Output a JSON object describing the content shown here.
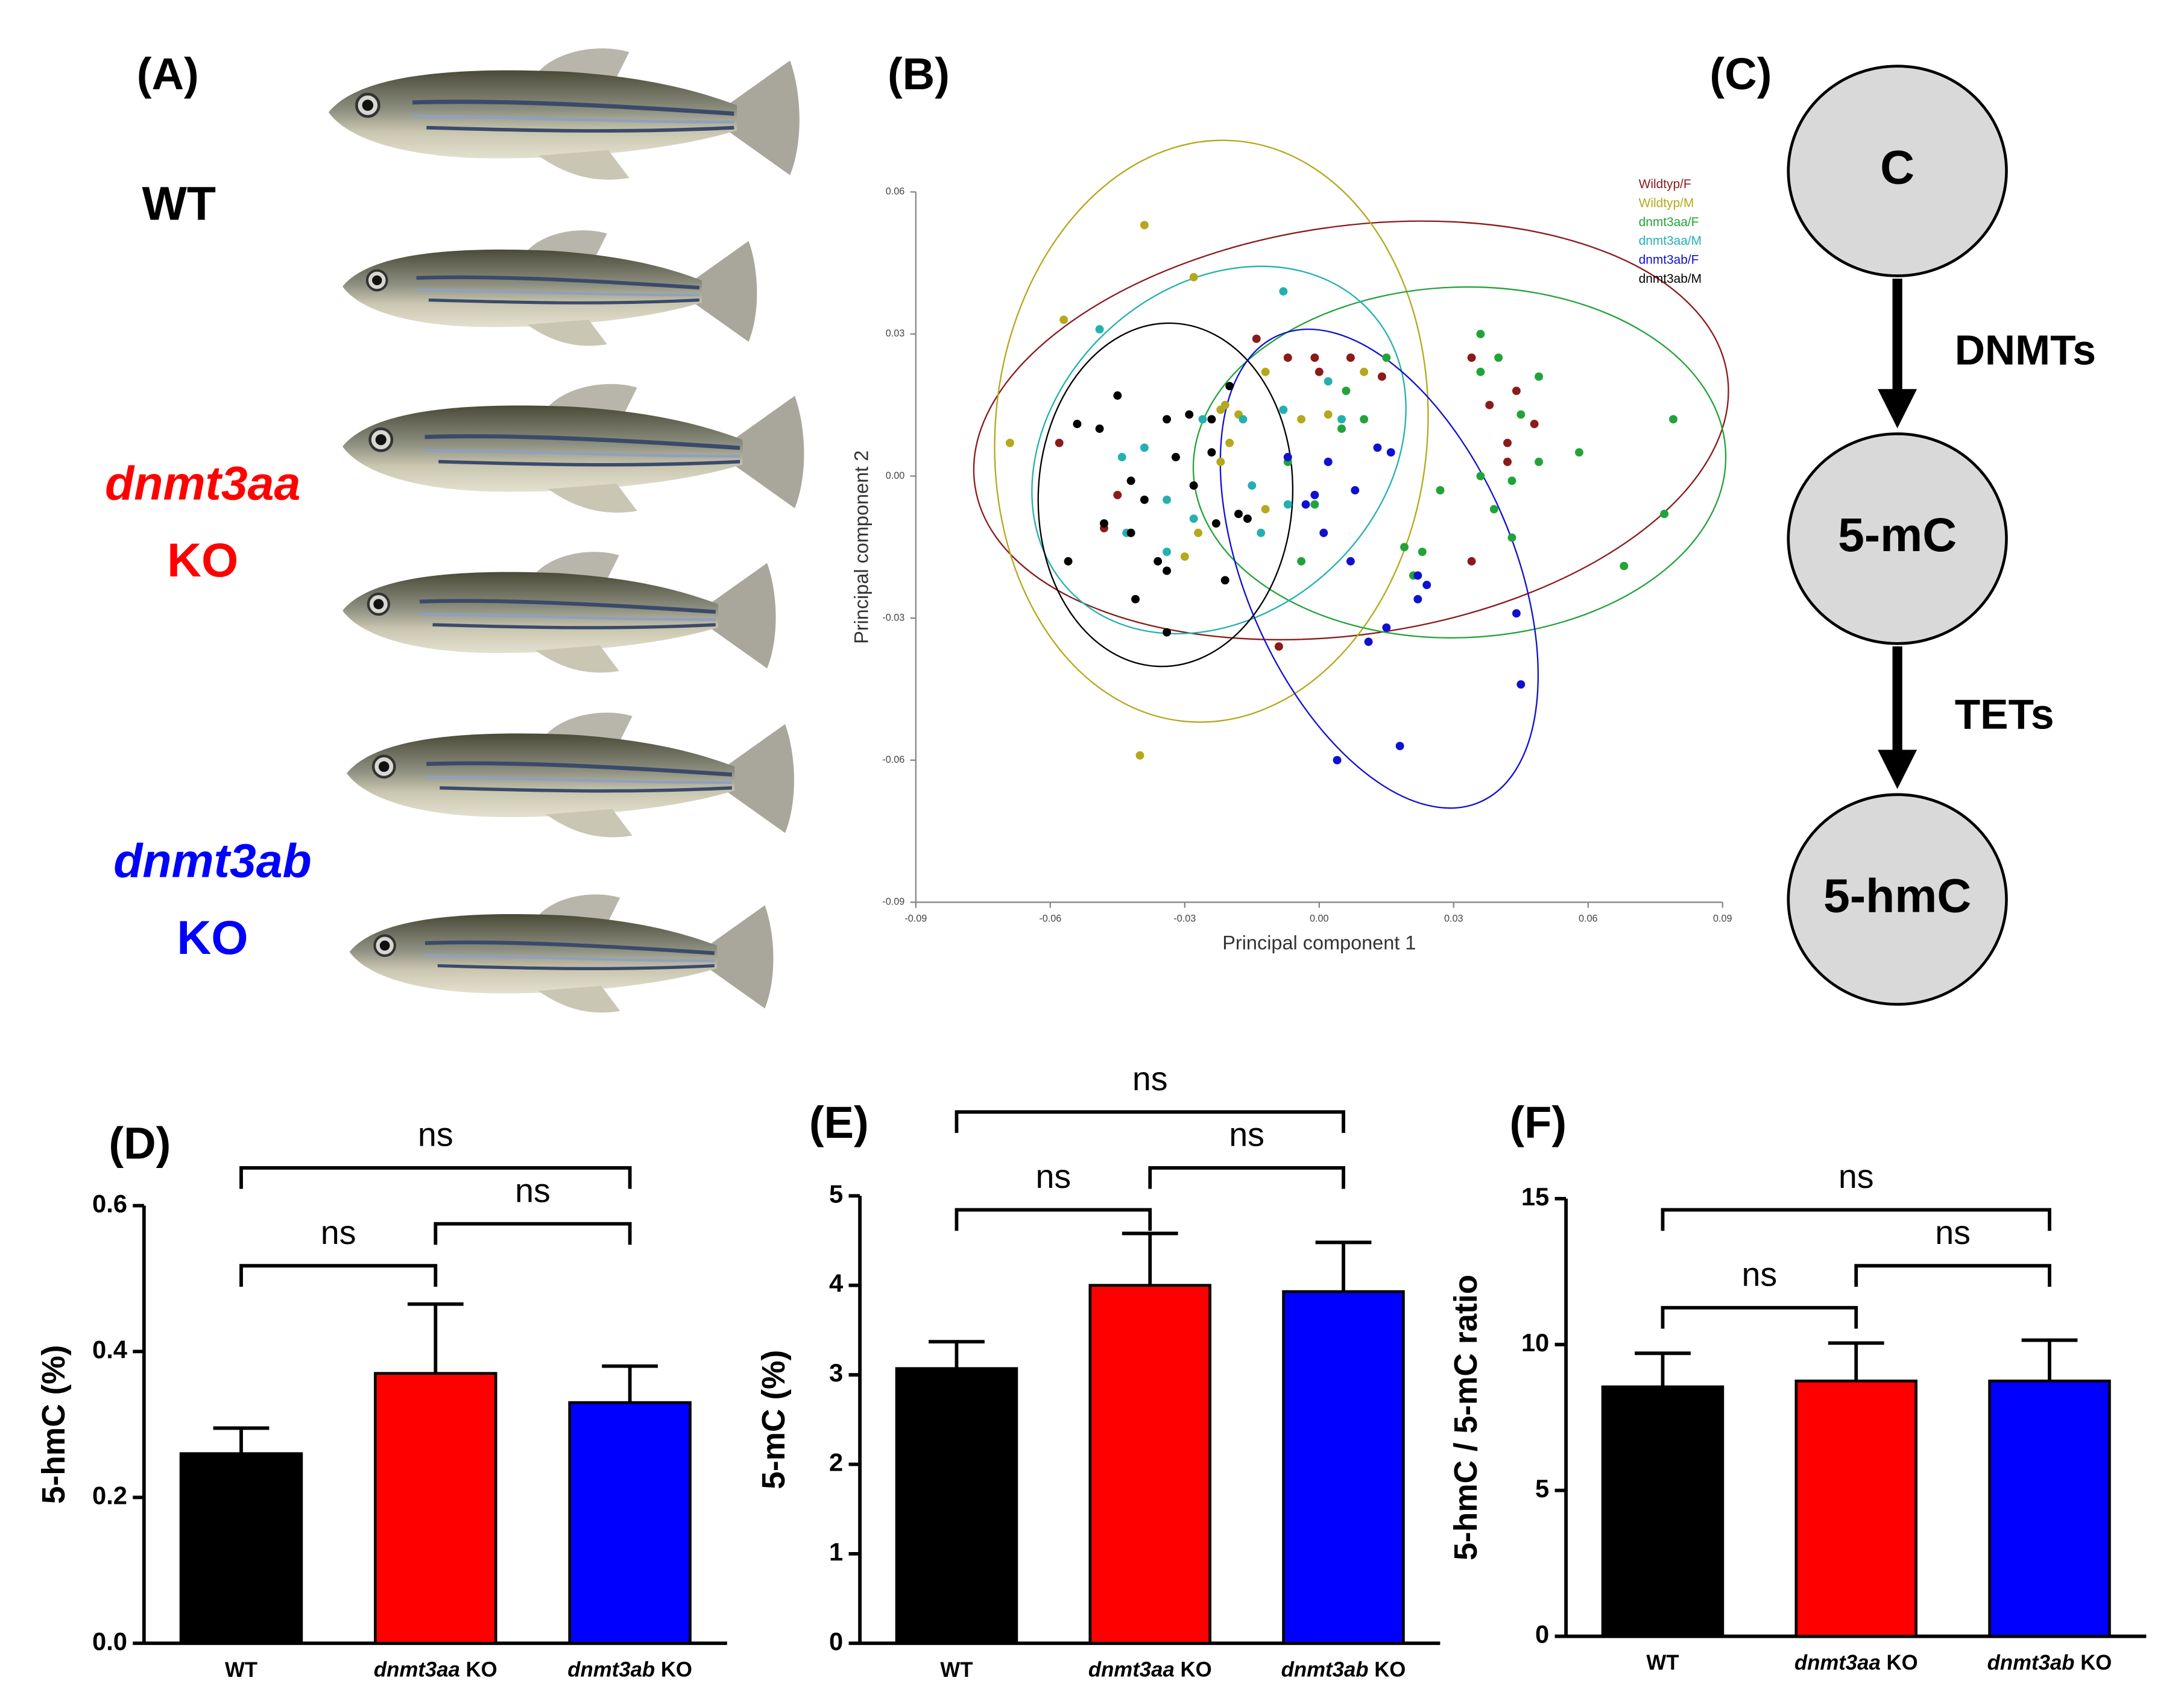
{
  "panel_a": {
    "label": "(A)",
    "groups": [
      {
        "lines": [
          "WT"
        ],
        "color": "#000000"
      },
      {
        "lines": [
          "dnmt3aa",
          "KO"
        ],
        "color": "#ff0000"
      },
      {
        "lines": [
          "dnmt3ab",
          "KO"
        ],
        "color": "#0000ff"
      }
    ]
  },
  "panel_c": {
    "label": "(C)",
    "nodes": [
      "C",
      "5-mC",
      "5-hmC"
    ],
    "edges": [
      "DNMTs",
      "TETs"
    ]
  },
  "chart_data": [
    {
      "type": "scatter",
      "label": "(B)",
      "x_label": "Principal component 1",
      "y_label": "Principal component 2",
      "xlim": [
        -0.09,
        0.09
      ],
      "xticks": [
        -0.09,
        -0.06,
        -0.03,
        {
          "value": 0,
          "label": "0.00"
        },
        0.03,
        0.06,
        0.09
      ],
      "ylim": [
        -0.09,
        0.06
      ],
      "yticks": [
        -0.09,
        -0.06,
        -0.03,
        {
          "value": 0,
          "label": "0.00"
        },
        0.03,
        0.06
      ],
      "legend": "upper right",
      "ellipses": true,
      "series": [
        {
          "name": "Wildtyp/F",
          "color": "#8b1a1a",
          "x": [
            -0.014,
            -0.007,
            -0.001,
            0.007,
            0.014,
            0.0,
            0.034,
            0.044,
            0.038,
            0.042,
            0.048,
            0.042,
            -0.048,
            -0.045,
            -0.058,
            -0.009,
            0.034
          ],
          "values": [
            0.029,
            0.025,
            0.025,
            0.025,
            0.021,
            0.022,
            0.025,
            0.018,
            0.015,
            0.007,
            0.011,
            0.003,
            -0.011,
            -0.004,
            0.007,
            -0.036,
            -0.018
          ]
        },
        {
          "name": "Wildtyp/M",
          "color": "#b5a81c",
          "x": [
            -0.039,
            -0.028,
            -0.069,
            -0.057,
            -0.04,
            -0.012,
            -0.022,
            -0.018,
            -0.004,
            -0.03,
            -0.02,
            -0.027,
            -0.022,
            -0.012,
            0.01,
            0.002,
            -0.021
          ],
          "values": [
            0.053,
            0.042,
            0.007,
            0.033,
            -0.059,
            0.022,
            0.014,
            0.013,
            0.012,
            -0.017,
            0.007,
            -0.012,
            0.003,
            -0.007,
            0.022,
            0.013,
            0.015
          ]
        },
        {
          "name": "dnmt3aa/F",
          "color": "#22a33a",
          "x": [
            0.015,
            0.036,
            0.04,
            0.049,
            0.036,
            0.045,
            0.049,
            0.058,
            0.036,
            0.027,
            0.039,
            0.043,
            0.079,
            0.077,
            0.068,
            0.019,
            0.023,
            0.021,
            -0.004,
            0.006,
            0.01,
            0.002,
            -0.001,
            -0.007,
            0.005,
            0.043
          ],
          "values": [
            0.025,
            0.03,
            0.025,
            0.021,
            0.022,
            0.013,
            0.003,
            0.005,
            0.0,
            -0.003,
            -0.007,
            -0.013,
            0.012,
            -0.008,
            -0.019,
            -0.015,
            -0.016,
            -0.021,
            -0.018,
            0.018,
            0.012,
            0.003,
            -0.006,
            0.003,
            0.01,
            -0.001
          ]
        },
        {
          "name": "dnmt3aa/M",
          "color": "#25b0b0",
          "x": [
            -0.049,
            -0.008,
            -0.044,
            -0.039,
            -0.034,
            -0.043,
            -0.017,
            -0.008,
            0.002,
            0.005,
            -0.015,
            -0.013,
            -0.034,
            -0.026,
            -0.028,
            -0.007
          ],
          "values": [
            0.031,
            0.039,
            0.004,
            0.006,
            -0.005,
            -0.012,
            0.012,
            0.014,
            0.02,
            0.012,
            -0.002,
            -0.012,
            -0.016,
            0.012,
            -0.009,
            -0.006
          ]
        },
        {
          "name": "dnmt3ab/F",
          "color": "#1010d0",
          "x": [
            0.013,
            0.016,
            0.002,
            0.008,
            -0.003,
            0.001,
            0.007,
            0.022,
            0.024,
            0.022,
            0.015,
            0.011,
            0.044,
            0.045,
            0.018,
            0.004,
            -0.007,
            -0.001
          ],
          "values": [
            0.006,
            0.005,
            0.003,
            -0.003,
            -0.006,
            -0.012,
            -0.018,
            -0.021,
            -0.023,
            -0.026,
            -0.032,
            -0.035,
            -0.029,
            -0.044,
            -0.057,
            -0.06,
            0.004,
            -0.004
          ]
        },
        {
          "name": "dnmt3ab/M",
          "color": "#000000",
          "x": [
            -0.054,
            -0.049,
            -0.045,
            -0.034,
            -0.029,
            -0.024,
            -0.02,
            -0.032,
            -0.024,
            -0.028,
            -0.039,
            -0.042,
            -0.036,
            -0.034,
            -0.041,
            -0.034,
            -0.056,
            -0.023,
            -0.018,
            -0.016,
            -0.021,
            -0.042,
            -0.048
          ],
          "values": [
            0.011,
            0.01,
            0.017,
            0.012,
            0.013,
            0.012,
            0.019,
            0.004,
            0.005,
            -0.002,
            -0.005,
            -0.012,
            -0.018,
            -0.02,
            -0.026,
            -0.033,
            -0.018,
            -0.01,
            -0.008,
            -0.009,
            -0.022,
            -0.001,
            -0.01
          ]
        }
      ]
    },
    {
      "type": "bar",
      "label": "(D)",
      "y_label": "5-hmC (%)",
      "categories": [
        "WT",
        "dnmt3aa KO",
        "dnmt3ab KO"
      ],
      "colors": [
        "#000000",
        "#ff0000",
        "#0000ff"
      ],
      "values": [
        0.26,
        0.37,
        0.33
      ],
      "errors": [
        0.035,
        0.095,
        0.05
      ],
      "ylim": [
        0,
        0.6
      ],
      "yticks": [
        {
          "value": 0,
          "label": "0.0"
        },
        0.2,
        0.4,
        0.6
      ],
      "comparisons": [
        {
          "pair": [
            0,
            1
          ],
          "label": "ns"
        },
        {
          "pair": [
            1,
            2
          ],
          "label": "ns"
        },
        {
          "pair": [
            0,
            2
          ],
          "label": "ns"
        }
      ]
    },
    {
      "type": "bar",
      "label": "(E)",
      "y_label": "5-mC (%)",
      "categories": [
        "WT",
        "dnmt3aa KO",
        "dnmt3ab KO"
      ],
      "colors": [
        "#000000",
        "#ff0000",
        "#0000ff"
      ],
      "values": [
        3.07,
        4.0,
        3.93
      ],
      "errors": [
        0.3,
        0.58,
        0.55
      ],
      "ylim": [
        0,
        5
      ],
      "yticks": [
        0,
        1,
        2,
        3,
        4,
        5
      ],
      "comparisons": [
        {
          "pair": [
            0,
            1
          ],
          "label": "ns"
        },
        {
          "pair": [
            1,
            2
          ],
          "label": "ns"
        },
        {
          "pair": [
            0,
            2
          ],
          "label": "ns"
        }
      ]
    },
    {
      "type": "bar",
      "label": "(F)",
      "y_label": "5-hmC / 5-mC ratio",
      "categories": [
        "WT",
        "dnmt3aa KO",
        "dnmt3ab KO"
      ],
      "colors": [
        "#000000",
        "#ff0000",
        "#0000ff"
      ],
      "values": [
        8.55,
        8.75,
        8.75
      ],
      "errors": [
        1.15,
        1.3,
        1.4
      ],
      "ylim": [
        0,
        15
      ],
      "yticks": [
        0,
        5,
        10,
        15
      ],
      "comparisons": [
        {
          "pair": [
            0,
            1
          ],
          "label": "ns"
        },
        {
          "pair": [
            1,
            2
          ],
          "label": "ns"
        },
        {
          "pair": [
            0,
            2
          ],
          "label": "ns"
        }
      ]
    }
  ]
}
